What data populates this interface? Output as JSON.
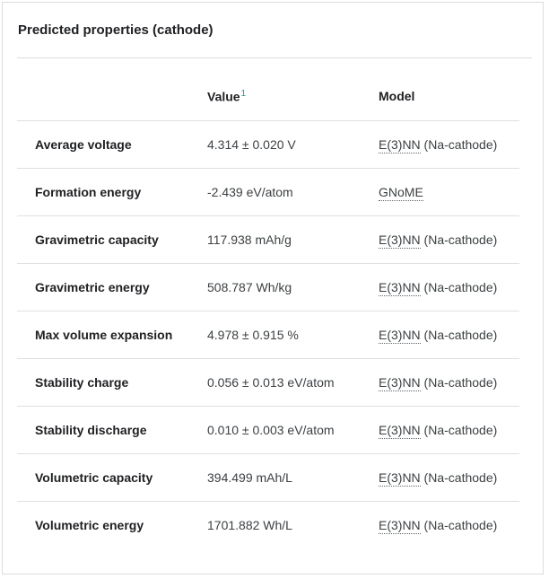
{
  "card": {
    "title": "Predicted properties (cathode)"
  },
  "table": {
    "headers": {
      "property": "",
      "value": "Value",
      "value_footnote": "1",
      "model": "Model"
    },
    "rows": [
      {
        "property": "Average voltage",
        "value": "4.314 ± 0.020 V",
        "model_abbr": "E(3)NN",
        "model_suffix": " (Na-cathode)"
      },
      {
        "property": "Formation energy",
        "value": "-2.439 eV/atom",
        "model_abbr": "GNoME",
        "model_suffix": ""
      },
      {
        "property": "Gravimetric capacity",
        "value": "117.938 mAh/g",
        "model_abbr": "E(3)NN",
        "model_suffix": " (Na-cathode)"
      },
      {
        "property": "Gravimetric energy",
        "value": "508.787 Wh/kg",
        "model_abbr": "E(3)NN",
        "model_suffix": " (Na-cathode)"
      },
      {
        "property": "Max volume expansion",
        "value": "4.978 ± 0.915 %",
        "model_abbr": "E(3)NN",
        "model_suffix": " (Na-cathode)"
      },
      {
        "property": "Stability charge",
        "value": "0.056 ± 0.013 eV/atom",
        "model_abbr": "E(3)NN",
        "model_suffix": " (Na-cathode)"
      },
      {
        "property": "Stability discharge",
        "value": "0.010 ± 0.003 eV/atom",
        "model_abbr": "E(3)NN",
        "model_suffix": " (Na-cathode)"
      },
      {
        "property": "Volumetric capacity",
        "value": "394.499 mAh/L",
        "model_abbr": "E(3)NN",
        "model_suffix": " (Na-cathode)"
      },
      {
        "property": "Volumetric energy",
        "value": "1701.882 Wh/L",
        "model_abbr": "E(3)NN",
        "model_suffix": " (Na-cathode)"
      }
    ]
  }
}
